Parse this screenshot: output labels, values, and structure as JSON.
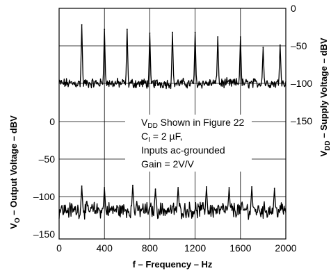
{
  "chart_data": {
    "type": "line",
    "xlabel": "f – Frequency – Hz",
    "x_ticks": [
      "0",
      "400",
      "800",
      "1200",
      "1600",
      "2000"
    ],
    "xlim": [
      0,
      2000
    ],
    "left_axis": {
      "label_main": "V",
      "label_sub": "O",
      "label_rest": " – Output Voltage – dBV",
      "ticks": [
        "0",
        "–50",
        "–100",
        "–150"
      ],
      "ylim": [
        -150,
        0
      ]
    },
    "right_axis": {
      "label_main": "V",
      "label_sub": "DD",
      "label_rest": " – Supply Voltage – dBV",
      "ticks": [
        "0",
        "–50",
        "–100",
        "–150"
      ],
      "ylim": [
        -150,
        0
      ]
    },
    "annotation": {
      "line1_main": "V",
      "line1_sub": "DD",
      "line1_rest": " Shown in Figure 22",
      "line2_main": "C",
      "line2_sub": "I",
      "line2_rest": " = 2 µF,",
      "line3": "Inputs ac-grounded",
      "line4": "Gain = 2V/V"
    },
    "series": [
      {
        "axis": "right",
        "noise_floor": -100,
        "peaks": [
          {
            "x": 200,
            "y": -22
          },
          {
            "x": 400,
            "y": -28
          },
          {
            "x": 600,
            "y": -28
          },
          {
            "x": 800,
            "y": -33
          },
          {
            "x": 1000,
            "y": -32
          },
          {
            "x": 1200,
            "y": -32
          },
          {
            "x": 1400,
            "y": -38
          },
          {
            "x": 1600,
            "y": -38
          },
          {
            "x": 1800,
            "y": -52
          },
          {
            "x": 1950,
            "y": -49
          }
        ]
      },
      {
        "axis": "left",
        "noise_floor": -118,
        "peaks": [
          {
            "x": 200,
            "y": -86
          },
          {
            "x": 400,
            "y": -88
          },
          {
            "x": 650,
            "y": -85
          },
          {
            "x": 850,
            "y": -90
          },
          {
            "x": 1050,
            "y": -88
          },
          {
            "x": 1300,
            "y": -87
          },
          {
            "x": 1500,
            "y": -88
          },
          {
            "x": 1700,
            "y": -87
          },
          {
            "x": 1900,
            "y": -89
          }
        ]
      }
    ]
  }
}
